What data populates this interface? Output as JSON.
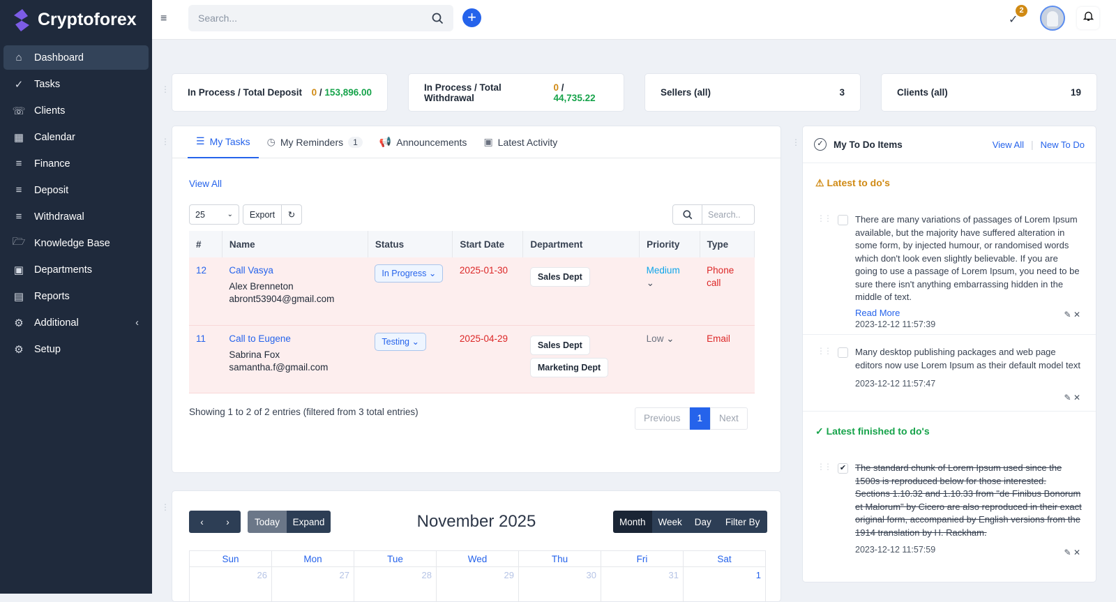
{
  "brand": {
    "name": "Cryptoforex"
  },
  "sidebar": {
    "items": [
      {
        "label": "Dashboard",
        "icon": "home-icon"
      },
      {
        "label": "Tasks",
        "icon": "check-circle-icon"
      },
      {
        "label": "Clients",
        "icon": "phone-icon"
      },
      {
        "label": "Calendar",
        "icon": "calendar-icon"
      },
      {
        "label": "Finance",
        "icon": "list-icon"
      },
      {
        "label": "Deposit",
        "icon": "list-icon"
      },
      {
        "label": "Withdrawal",
        "icon": "list-icon"
      },
      {
        "label": "Knowledge Base",
        "icon": "folder-icon"
      },
      {
        "label": "Departments",
        "icon": "id-card-icon"
      },
      {
        "label": "Reports",
        "icon": "chart-icon"
      },
      {
        "label": "Additional",
        "icon": "gears-icon"
      },
      {
        "label": "Setup",
        "icon": "gear-icon"
      }
    ]
  },
  "topbar": {
    "search_placeholder": "Search...",
    "notifications_count": "2"
  },
  "stats": [
    {
      "label": "In Process / Total Deposit",
      "in_process": "0",
      "total": "153,896.00"
    },
    {
      "label": "In Process / Total Withdrawal",
      "in_process": "0",
      "total": "44,735.22"
    },
    {
      "label": "Sellers (all)",
      "value": "3"
    },
    {
      "label": "Clients (all)",
      "value": "19"
    }
  ],
  "tasks": {
    "tabs": [
      {
        "label": "My Tasks"
      },
      {
        "label": "My Reminders",
        "badge": "1"
      },
      {
        "label": "Announcements"
      },
      {
        "label": "Latest Activity"
      }
    ],
    "view_all": "View All",
    "page_size": "25",
    "export": "Export",
    "search_placeholder": "Search..",
    "columns": [
      "#",
      "Name",
      "Status",
      "Start Date",
      "Department",
      "Priority",
      "Type"
    ],
    "rows": [
      {
        "id": "12",
        "title": "Call Vasya",
        "client": "Alex Brenneton",
        "email": "abront53904@gmail.com",
        "status": "In Progress",
        "start": "2025-01-30",
        "depts": [
          "Sales Dept"
        ],
        "priority": "Medium",
        "type": "Phone call"
      },
      {
        "id": "11",
        "title": "Call to Eugene",
        "client": "Sabrina Fox",
        "email": "samantha.f@gmail.com",
        "status": "Testing",
        "start": "2025-04-29",
        "depts": [
          "Sales Dept",
          "Marketing Dept"
        ],
        "priority": "Low",
        "type": "Email"
      }
    ],
    "info": "Showing 1 to 2 of 2 entries (filtered from 3 total entries)",
    "pagination": {
      "prev": "Previous",
      "page": "1",
      "next": "Next"
    }
  },
  "todo": {
    "title": "My To Do Items",
    "view_all": "View All",
    "new": "New To Do",
    "latest_heading": "Latest to do's",
    "finished_heading": "Latest finished to do's",
    "read_more": "Read More",
    "latest": [
      {
        "text": "There are many variations of passages of Lorem Ipsum available, but the majority have suffered alteration in some form, by injected humour, or randomised words which don't look even slightly believable. If you are going to use a passage of Lorem Ipsum, you need to be sure there isn't anything embarrassing hidden in the middle of text.",
        "time": "2023-12-12 11:57:39"
      },
      {
        "text": "Many desktop publishing packages and web page editors now use Lorem Ipsum as their default model text",
        "time": "2023-12-12 11:57:47"
      }
    ],
    "finished": [
      {
        "text": "The standard chunk of Lorem Ipsum used since the 1500s is reproduced below for those interested. Sections 1.10.32 and 1.10.33 from \"de Finibus Bonorum et Malorum\" by Cicero are also reproduced in their exact original form, accompanied by English versions from the 1914 translation by H. Rackham.",
        "time": "2023-12-12 11:57:59"
      }
    ]
  },
  "calendar": {
    "title": "November 2025",
    "today": "Today",
    "expand": "Expand",
    "views": [
      "Month",
      "Week",
      "Day",
      "Filter By"
    ],
    "days": [
      "Sun",
      "Mon",
      "Tue",
      "Wed",
      "Thu",
      "Fri",
      "Sat"
    ],
    "first_week": [
      "26",
      "27",
      "28",
      "29",
      "30",
      "31",
      "1"
    ]
  }
}
